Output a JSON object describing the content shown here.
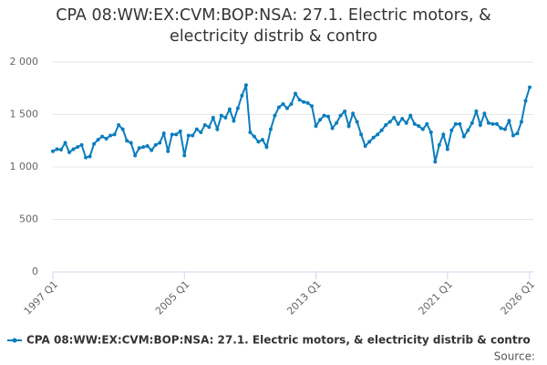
{
  "chart_data": {
    "type": "line",
    "title": "CPA 08:WW:EX:CVM:BOP:NSA: 27.1. Electric motors, & electricity distrib & contro",
    "source_label": "Source:",
    "categories": [
      "1997 Q1",
      null,
      null,
      null,
      null,
      null,
      null,
      null,
      null,
      null,
      null,
      null,
      null,
      null,
      null,
      null,
      null,
      null,
      null,
      null,
      null,
      null,
      null,
      null,
      null,
      null,
      null,
      null,
      null,
      null,
      null,
      null,
      "2005 Q1",
      null,
      null,
      null,
      null,
      null,
      null,
      null,
      null,
      null,
      null,
      null,
      null,
      null,
      null,
      null,
      null,
      null,
      null,
      null,
      null,
      null,
      null,
      null,
      null,
      null,
      null,
      null,
      null,
      null,
      null,
      null,
      "2013 Q1",
      null,
      null,
      null,
      null,
      null,
      null,
      null,
      null,
      null,
      null,
      null,
      null,
      null,
      null,
      null,
      null,
      null,
      null,
      null,
      null,
      null,
      null,
      null,
      null,
      null,
      null,
      null,
      null,
      null,
      null,
      null,
      "2021 Q1",
      null,
      null,
      null,
      null,
      null,
      null,
      null,
      null,
      null,
      null,
      null,
      null,
      null,
      null,
      null,
      null,
      null,
      null,
      null,
      "2026 Q1"
    ],
    "series": [
      {
        "name": "CPA 08:WW:EX:CVM:BOP:NSA: 27.1. Electric motors, & electricity distrib & contro",
        "color": "#0b7dbd",
        "values": [
          1150,
          1170,
          1165,
          1230,
          1140,
          1170,
          1190,
          1210,
          1090,
          1100,
          1220,
          1260,
          1290,
          1270,
          1300,
          1310,
          1400,
          1360,
          1250,
          1230,
          1110,
          1180,
          1190,
          1200,
          1160,
          1210,
          1230,
          1320,
          1150,
          1310,
          1310,
          1340,
          1110,
          1300,
          1300,
          1360,
          1330,
          1400,
          1380,
          1470,
          1360,
          1490,
          1470,
          1550,
          1440,
          1560,
          1680,
          1780,
          1330,
          1290,
          1240,
          1260,
          1190,
          1360,
          1490,
          1570,
          1600,
          1560,
          1600,
          1700,
          1640,
          1620,
          1610,
          1580,
          1390,
          1450,
          1490,
          1480,
          1370,
          1420,
          1490,
          1530,
          1390,
          1510,
          1430,
          1310,
          1200,
          1240,
          1280,
          1310,
          1350,
          1400,
          1430,
          1470,
          1410,
          1460,
          1420,
          1490,
          1410,
          1390,
          1360,
          1410,
          1330,
          1050,
          1210,
          1310,
          1170,
          1350,
          1410,
          1410,
          1290,
          1350,
          1420,
          1530,
          1400,
          1510,
          1420,
          1410,
          1410,
          1370,
          1360,
          1440,
          1300,
          1320,
          1430,
          1630,
          1760
        ]
      }
    ],
    "ylim": [
      0,
      2000
    ],
    "yticks": [
      0,
      500,
      {
        "value": 1000,
        "label": "1 000"
      },
      {
        "value": 1500,
        "label": "1 500"
      },
      {
        "value": 2000,
        "label": "2 000"
      }
    ],
    "grid": true
  }
}
